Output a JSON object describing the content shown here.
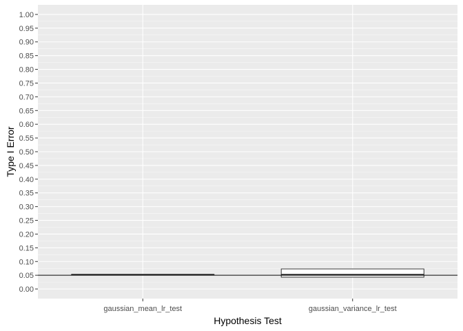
{
  "chart_data": {
    "type": "boxplot",
    "title": "",
    "xlabel": "Hypothesis Test",
    "ylabel": "Type I Error",
    "categories": [
      "gaussian_mean_lr_test",
      "gaussian_variance_lr_test"
    ],
    "boxes": [
      {
        "category": "gaussian_mean_lr_test",
        "q1": 0.052,
        "median": 0.052,
        "q3": 0.053
      },
      {
        "category": "gaussian_variance_lr_test",
        "q1": 0.043,
        "median": 0.052,
        "q3": 0.073
      }
    ],
    "reference_line": {
      "y": 0.05
    },
    "ylim": [
      -0.035,
      1.035
    ],
    "yticks": [
      0.0,
      0.05,
      0.1,
      0.15,
      0.2,
      0.25,
      0.3,
      0.35,
      0.4,
      0.45,
      0.5,
      0.55,
      0.6,
      0.65,
      0.7,
      0.75,
      0.8,
      0.85,
      0.9,
      0.95,
      1.0
    ],
    "ytick_labels": [
      "0.00",
      "0.05",
      "0.10",
      "0.15",
      "0.20",
      "0.25",
      "0.30",
      "0.35",
      "0.40",
      "0.45",
      "0.50",
      "0.55",
      "0.60",
      "0.65",
      "0.70",
      "0.75",
      "0.80",
      "0.85",
      "0.90",
      "0.95",
      "1.00"
    ],
    "grid": true,
    "colors": {
      "panel": "#ebebeb",
      "grid_major": "#ffffff",
      "box_fill": "#ffffff",
      "box_outline": "#333333",
      "reference_line": "#000000",
      "tick_text": "#4d4d4d"
    }
  }
}
